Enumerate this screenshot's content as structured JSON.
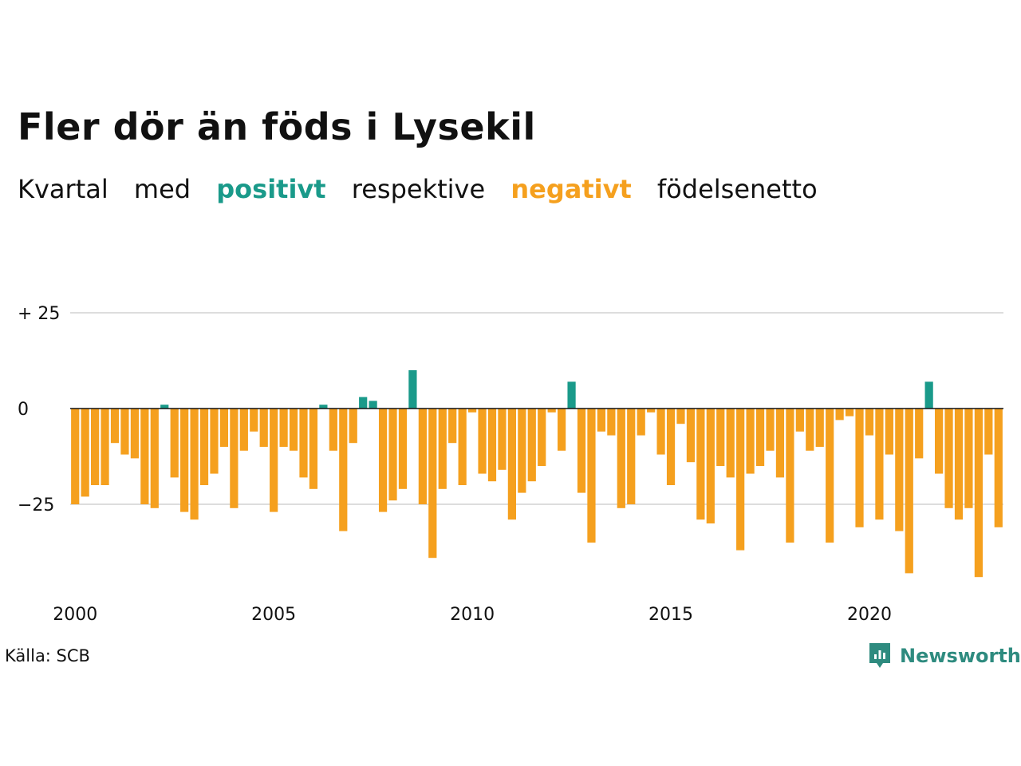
{
  "title": "Fler dör än föds i Lysekil",
  "subtitle": {
    "word1": "Kvartal",
    "word2": "med",
    "positive": "positivt",
    "word3": "respektive",
    "negative": "negativt",
    "word4": "födelsenetto"
  },
  "source": "Källa: SCB",
  "brand": {
    "name": "Newsworthy",
    "icon": "newsworthy-logo-icon"
  },
  "colors": {
    "positive": "#1a9a8a",
    "negative": "#f5a01e",
    "grid": "#dddddd",
    "baseline": "#111111",
    "brand": "#2e8b7f"
  },
  "chart_data": {
    "type": "bar",
    "x_start": "2000 Q1",
    "x_ticks": [
      "2000",
      "2005",
      "2010",
      "2015",
      "2020"
    ],
    "y_ticks": [
      {
        "value": 25,
        "label": "+ 25"
      },
      {
        "value": 0,
        "label": "0"
      },
      {
        "value": -25,
        "label": "−25"
      }
    ],
    "ylim": [
      -45,
      25
    ],
    "grid": true,
    "values": [
      -25,
      -23,
      -20,
      -20,
      -9,
      -12,
      -13,
      -25,
      -26,
      1,
      -18,
      -27,
      -29,
      -20,
      -17,
      -10,
      -26,
      -11,
      -6,
      -10,
      -27,
      -10,
      -11,
      -18,
      -21,
      1,
      -11,
      -32,
      -9,
      3,
      2,
      -27,
      -24,
      -21,
      10,
      -25,
      -39,
      -21,
      -9,
      -20,
      -1,
      -17,
      -19,
      -16,
      -29,
      -22,
      -19,
      -15,
      -1,
      -11,
      7,
      -22,
      -35,
      -6,
      -7,
      -26,
      -25,
      -7,
      -1,
      -12,
      -20,
      -4,
      -14,
      -29,
      -30,
      -15,
      -18,
      -37,
      -17,
      -15,
      -11,
      -18,
      -35,
      -6,
      -11,
      -10,
      -35,
      -3,
      -2,
      -31,
      -7,
      -29,
      -12,
      -32,
      -43,
      -13,
      7,
      -17,
      -26,
      -29,
      -26,
      -44,
      -12,
      -31
    ]
  }
}
